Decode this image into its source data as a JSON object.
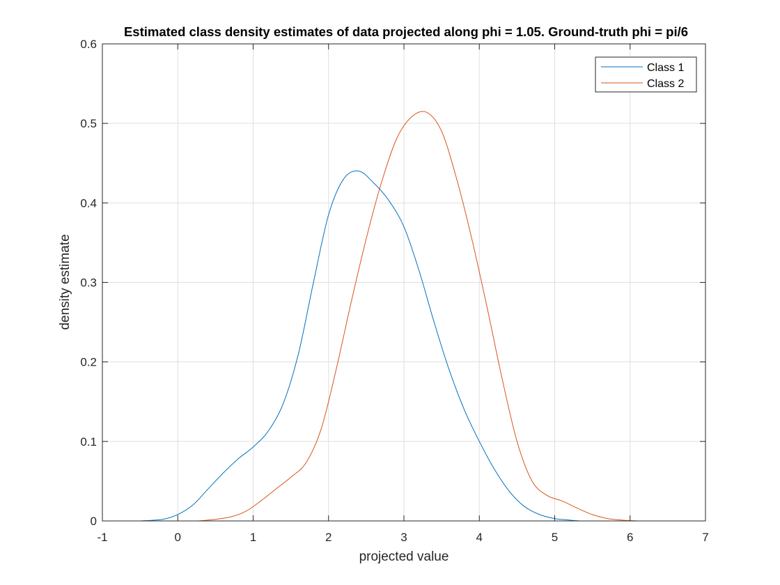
{
  "chart_data": {
    "type": "line",
    "title": "Estimated class density estimates of data projected along phi = 1.05. Ground-truth phi = pi/6",
    "xlabel": "projected value",
    "ylabel": "density estimate",
    "xlim": [
      -1,
      7
    ],
    "ylim": [
      0,
      0.6
    ],
    "xticks": [
      -1,
      0,
      1,
      2,
      3,
      4,
      5,
      6,
      7
    ],
    "yticks": [
      0,
      0.1,
      0.2,
      0.3,
      0.4,
      0.5,
      0.6
    ],
    "xtick_labels": [
      "-1",
      "0",
      "1",
      "2",
      "3",
      "4",
      "5",
      "6",
      "7"
    ],
    "ytick_labels": [
      "0",
      "0.1",
      "0.2",
      "0.3",
      "0.4",
      "0.5",
      "0.6"
    ],
    "grid": true,
    "legend_position": "top-right",
    "series": [
      {
        "name": "Class 1",
        "color": "#0072bd",
        "x": [
          -0.5,
          -0.2,
          0,
          0.2,
          0.4,
          0.6,
          0.8,
          1.0,
          1.2,
          1.4,
          1.6,
          1.8,
          2.0,
          2.2,
          2.4,
          2.6,
          2.8,
          3.0,
          3.2,
          3.4,
          3.6,
          3.8,
          4.0,
          4.2,
          4.4,
          4.6,
          4.8,
          5.0,
          5.2,
          5.33
        ],
        "y": [
          0.0,
          0.002,
          0.008,
          0.02,
          0.04,
          0.06,
          0.078,
          0.093,
          0.113,
          0.148,
          0.21,
          0.3,
          0.385,
          0.43,
          0.44,
          0.425,
          0.403,
          0.37,
          0.315,
          0.25,
          0.19,
          0.14,
          0.1,
          0.065,
          0.037,
          0.018,
          0.008,
          0.003,
          0.001,
          0.0
        ]
      },
      {
        "name": "Class 2",
        "color": "#d95319",
        "x": [
          0.27,
          0.5,
          0.7,
          0.9,
          1.1,
          1.3,
          1.5,
          1.7,
          1.9,
          2.1,
          2.3,
          2.5,
          2.7,
          2.9,
          3.1,
          3.3,
          3.5,
          3.7,
          3.9,
          4.1,
          4.3,
          4.5,
          4.7,
          4.9,
          5.1,
          5.3,
          5.5,
          5.7,
          5.9,
          6.1
        ],
        "y": [
          0.0,
          0.002,
          0.005,
          0.012,
          0.025,
          0.04,
          0.055,
          0.073,
          0.115,
          0.19,
          0.275,
          0.355,
          0.425,
          0.48,
          0.508,
          0.514,
          0.49,
          0.43,
          0.355,
          0.27,
          0.18,
          0.1,
          0.05,
          0.032,
          0.025,
          0.016,
          0.008,
          0.003,
          0.001,
          0.0
        ]
      }
    ]
  }
}
